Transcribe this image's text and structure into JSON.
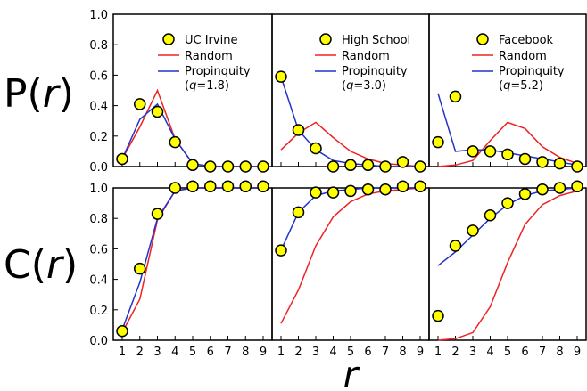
{
  "figure": {
    "row_labels": [
      {
        "prefix": "P(",
        "var": "r",
        "suffix": ")"
      },
      {
        "prefix": "C(",
        "var": "r",
        "suffix": ")"
      }
    ],
    "x_axis_title": "r"
  },
  "colors": {
    "data_fill": "#ffff00",
    "data_stroke": "#000000",
    "random": "#ee2222",
    "propinquity": "#2233cc"
  },
  "chart_data": [
    {
      "type": "line",
      "row": "P(r)",
      "x": [
        1,
        2,
        3,
        4,
        5,
        6,
        7,
        8,
        9
      ],
      "ylim": [
        0,
        1.0
      ],
      "yticks": [
        "0.0",
        "0.2",
        "0.4",
        "0.6",
        "0.8",
        "1.0"
      ],
      "legend": {
        "data": "UC Irvine",
        "random": "Random",
        "propinquity": "Propinquity",
        "q_prefix": "(",
        "q_var": "q",
        "q_value": "=1.8)"
      },
      "series": [
        {
          "name": "UC Irvine",
          "kind": "markers",
          "values": [
            0.05,
            0.41,
            0.36,
            0.16,
            0.01,
            0.0,
            0.0,
            0.0,
            0.0
          ]
        },
        {
          "name": "Random",
          "kind": "line",
          "values": [
            0.05,
            0.26,
            0.5,
            0.18,
            0.02,
            0.0,
            0.0,
            0.0,
            0.0
          ]
        },
        {
          "name": "Propinquity",
          "kind": "line",
          "values": [
            0.05,
            0.31,
            0.41,
            0.18,
            0.02,
            0.0,
            0.0,
            0.0,
            0.0
          ]
        }
      ]
    },
    {
      "type": "line",
      "row": "P(r)",
      "x": [
        1,
        2,
        3,
        4,
        5,
        6,
        7,
        8,
        9
      ],
      "ylim": [
        0,
        1.0
      ],
      "legend": {
        "data": "High School",
        "random": "Random",
        "propinquity": "Propinquity",
        "q_prefix": "(",
        "q_var": "q",
        "q_value": "=3.0)"
      },
      "series": [
        {
          "name": "High School",
          "kind": "markers",
          "values": [
            0.59,
            0.24,
            0.12,
            0.0,
            0.01,
            0.01,
            0.0,
            0.03,
            0.0
          ]
        },
        {
          "name": "Random",
          "kind": "line",
          "values": [
            0.11,
            0.22,
            0.29,
            0.19,
            0.1,
            0.05,
            0.02,
            0.01,
            0.0
          ]
        },
        {
          "name": "Propinquity",
          "kind": "line",
          "values": [
            0.59,
            0.24,
            0.11,
            0.04,
            0.02,
            0.01,
            0.0,
            0.0,
            0.0
          ]
        }
      ]
    },
    {
      "type": "line",
      "row": "P(r)",
      "x": [
        1,
        2,
        3,
        4,
        5,
        6,
        7,
        8,
        9
      ],
      "ylim": [
        0,
        1.0
      ],
      "legend": {
        "data": "Facebook",
        "random": "Random",
        "propinquity": "Propinquity",
        "q_prefix": "(",
        "q_var": "q",
        "q_value": "=5.2)"
      },
      "series": [
        {
          "name": "Facebook",
          "kind": "markers",
          "values": [
            0.16,
            0.46,
            0.1,
            0.1,
            0.08,
            0.05,
            0.03,
            0.02,
            0.0
          ]
        },
        {
          "name": "Random",
          "kind": "line",
          "values": [
            0.0,
            0.01,
            0.04,
            0.17,
            0.29,
            0.25,
            0.13,
            0.06,
            0.02
          ]
        },
        {
          "name": "Propinquity",
          "kind": "line",
          "values": [
            0.48,
            0.1,
            0.11,
            0.11,
            0.09,
            0.07,
            0.05,
            0.03,
            0.01
          ]
        }
      ]
    },
    {
      "type": "line",
      "row": "C(r)",
      "x": [
        1,
        2,
        3,
        4,
        5,
        6,
        7,
        8,
        9
      ],
      "xticks": [
        "1",
        "2",
        "3",
        "4",
        "5",
        "6",
        "7",
        "8",
        "9"
      ],
      "ylim": [
        0,
        1.0
      ],
      "yticks": [
        "0.0",
        "0.2",
        "0.4",
        "0.6",
        "0.8",
        "1.0"
      ],
      "series": [
        {
          "name": "UC Irvine",
          "kind": "markers",
          "values": [
            0.06,
            0.47,
            0.83,
            1.0,
            1.01,
            1.01,
            1.01,
            1.01,
            1.01
          ]
        },
        {
          "name": "Random",
          "kind": "line",
          "values": [
            0.05,
            0.27,
            0.79,
            0.98,
            1.0,
            1.0,
            1.0,
            1.0,
            1.0
          ]
        },
        {
          "name": "Propinquity",
          "kind": "line",
          "values": [
            0.07,
            0.38,
            0.8,
            0.98,
            1.0,
            1.0,
            1.0,
            1.0,
            1.0
          ]
        }
      ]
    },
    {
      "type": "line",
      "row": "C(r)",
      "x": [
        1,
        2,
        3,
        4,
        5,
        6,
        7,
        8,
        9
      ],
      "xticks": [
        "1",
        "2",
        "3",
        "4",
        "5",
        "6",
        "7",
        "8",
        "9"
      ],
      "ylim": [
        0,
        1.0
      ],
      "series": [
        {
          "name": "High School",
          "kind": "markers",
          "values": [
            0.59,
            0.84,
            0.97,
            0.97,
            0.98,
            0.99,
            0.99,
            1.01,
            1.01
          ]
        },
        {
          "name": "Random",
          "kind": "line",
          "values": [
            0.11,
            0.33,
            0.62,
            0.81,
            0.91,
            0.96,
            0.98,
            0.99,
            1.0
          ]
        },
        {
          "name": "Propinquity",
          "kind": "line",
          "values": [
            0.59,
            0.84,
            0.95,
            0.98,
            0.99,
            1.0,
            1.0,
            1.0,
            1.0
          ]
        }
      ]
    },
    {
      "type": "line",
      "row": "C(r)",
      "x": [
        1,
        2,
        3,
        4,
        5,
        6,
        7,
        8,
        9
      ],
      "xticks": [
        "1",
        "2",
        "3",
        "4",
        "5",
        "6",
        "7",
        "8",
        "9"
      ],
      "ylim": [
        0,
        1.0
      ],
      "series": [
        {
          "name": "Facebook",
          "kind": "markers",
          "values": [
            0.16,
            0.62,
            0.72,
            0.82,
            0.9,
            0.96,
            0.99,
            1.0,
            1.01
          ]
        },
        {
          "name": "Random",
          "kind": "line",
          "values": [
            0.0,
            0.01,
            0.05,
            0.22,
            0.51,
            0.76,
            0.89,
            0.95,
            0.98
          ]
        },
        {
          "name": "Propinquity",
          "kind": "line",
          "values": [
            0.49,
            0.58,
            0.69,
            0.8,
            0.89,
            0.95,
            0.98,
            0.99,
            1.0
          ]
        }
      ]
    }
  ]
}
